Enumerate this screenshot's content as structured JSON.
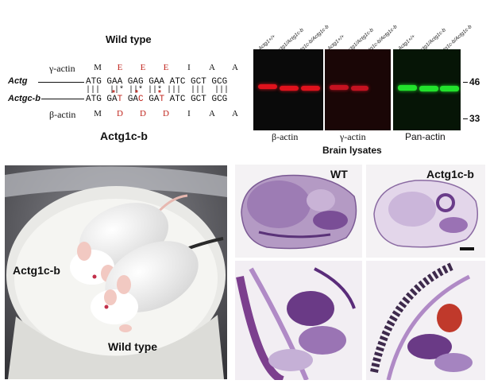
{
  "panel_a": {
    "wild_type_title": "Wild type",
    "mutant_title": "Actg1c-b",
    "gamma_label": "γ-actin",
    "beta_label": "β-actin",
    "actg_label": "Actg",
    "actgcb_label": "Actgc-b",
    "gamma_aa": [
      "M",
      "E",
      "E",
      "E",
      "I",
      "A",
      "A"
    ],
    "beta_aa": [
      "M",
      "D",
      "D",
      "D",
      "I",
      "A",
      "A"
    ],
    "actg_seq": "ATG GAA GAG GAA ATC GCT GCG",
    "actgcb_seq_parts": [
      "ATG GA",
      "T",
      " GA",
      "C",
      " GA",
      "T",
      " ATC GCT GCG"
    ],
    "match_marks": "|||  ||* ||* ||* |||  |||  |||"
  },
  "blot": {
    "lanes": [
      "Actg1+/+",
      "Actg1/Actg1c-b",
      "Actg1c-b/Actg1c-b"
    ],
    "panels": [
      "β-actin",
      "γ-actin",
      "Pan-actin"
    ],
    "caption": "Brain lysates",
    "markers": [
      "46",
      "33"
    ],
    "colors": {
      "beta": "#e0121c",
      "gamma": "#c41220",
      "pan": "#22e22c"
    }
  },
  "photo": {
    "label_mutant": "Actg1c-b",
    "label_wt": "Wild type"
  },
  "histology": {
    "label_wt": "WT",
    "label_mutant": "Actg1c-b"
  }
}
